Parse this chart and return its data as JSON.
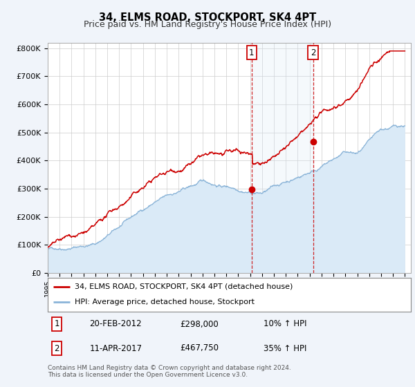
{
  "title": "34, ELMS ROAD, STOCKPORT, SK4 4PT",
  "subtitle": "Price paid vs. HM Land Registry's House Price Index (HPI)",
  "title_fontsize": 10.5,
  "subtitle_fontsize": 9,
  "ylabel_ticks": [
    "£0",
    "£100K",
    "£200K",
    "£300K",
    "£400K",
    "£500K",
    "£600K",
    "£700K",
    "£800K"
  ],
  "ytick_values": [
    0,
    100000,
    200000,
    300000,
    400000,
    500000,
    600000,
    700000,
    800000
  ],
  "ylim": [
    0,
    820000
  ],
  "xlim_start": 1995.0,
  "xlim_end": 2025.5,
  "hpi_color": "#8ab4d8",
  "hpi_fill_color": "#daeaf7",
  "price_color": "#cc0000",
  "marker_color": "#cc0000",
  "dashed_line_color": "#cc0000",
  "background_color": "#f0f4fa",
  "plot_bg_color": "#ffffff",
  "sale1_x": 2012.13,
  "sale1_y": 298000,
  "sale2_x": 2017.28,
  "sale2_y": 467750,
  "legend_label_price": "34, ELMS ROAD, STOCKPORT, SK4 4PT (detached house)",
  "legend_label_hpi": "HPI: Average price, detached house, Stockport",
  "table_rows": [
    [
      "1",
      "20-FEB-2012",
      "£298,000",
      "10% ↑ HPI"
    ],
    [
      "2",
      "11-APR-2017",
      "£467,750",
      "35% ↑ HPI"
    ]
  ],
  "footer_text": "Contains HM Land Registry data © Crown copyright and database right 2024.\nThis data is licensed under the Open Government Licence v3.0.",
  "xtick_years": [
    1995,
    1996,
    1997,
    1998,
    1999,
    2000,
    2001,
    2002,
    2003,
    2004,
    2005,
    2006,
    2007,
    2008,
    2009,
    2010,
    2011,
    2012,
    2013,
    2014,
    2015,
    2016,
    2017,
    2018,
    2019,
    2020,
    2021,
    2022,
    2023,
    2024,
    2025
  ]
}
